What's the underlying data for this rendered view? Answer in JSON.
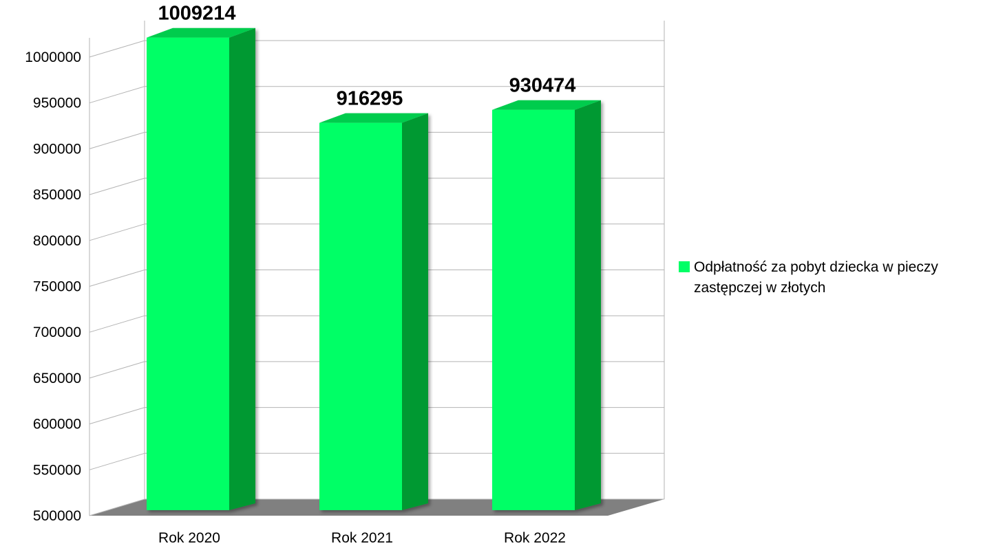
{
  "chart_data": {
    "type": "bar",
    "style": "3d-column",
    "categories": [
      "Rok 2020",
      "Rok 2021",
      "Rok 2022"
    ],
    "series": [
      {
        "name": "Odpłatność za pobyt dziecka w pieczy zastępczej w złotych",
        "values": [
          1009214,
          916295,
          930474
        ],
        "color": "#00ff66"
      }
    ],
    "data_labels": [
      "1009214",
      "916295",
      "930474"
    ],
    "yticks": [
      "500000",
      "550000",
      "600000",
      "650000",
      "700000",
      "750000",
      "800000",
      "850000",
      "900000",
      "950000",
      "1000000"
    ],
    "ylim": [
      500000,
      1000000
    ],
    "grid": true,
    "legend": "right",
    "title": "",
    "xlabel": "",
    "ylabel": ""
  },
  "colors": {
    "bar_front": "#00ff66",
    "bar_side": "#009933",
    "bar_top": "#00cc4d",
    "floor": "#808080",
    "grid": "#b3b3b3"
  }
}
